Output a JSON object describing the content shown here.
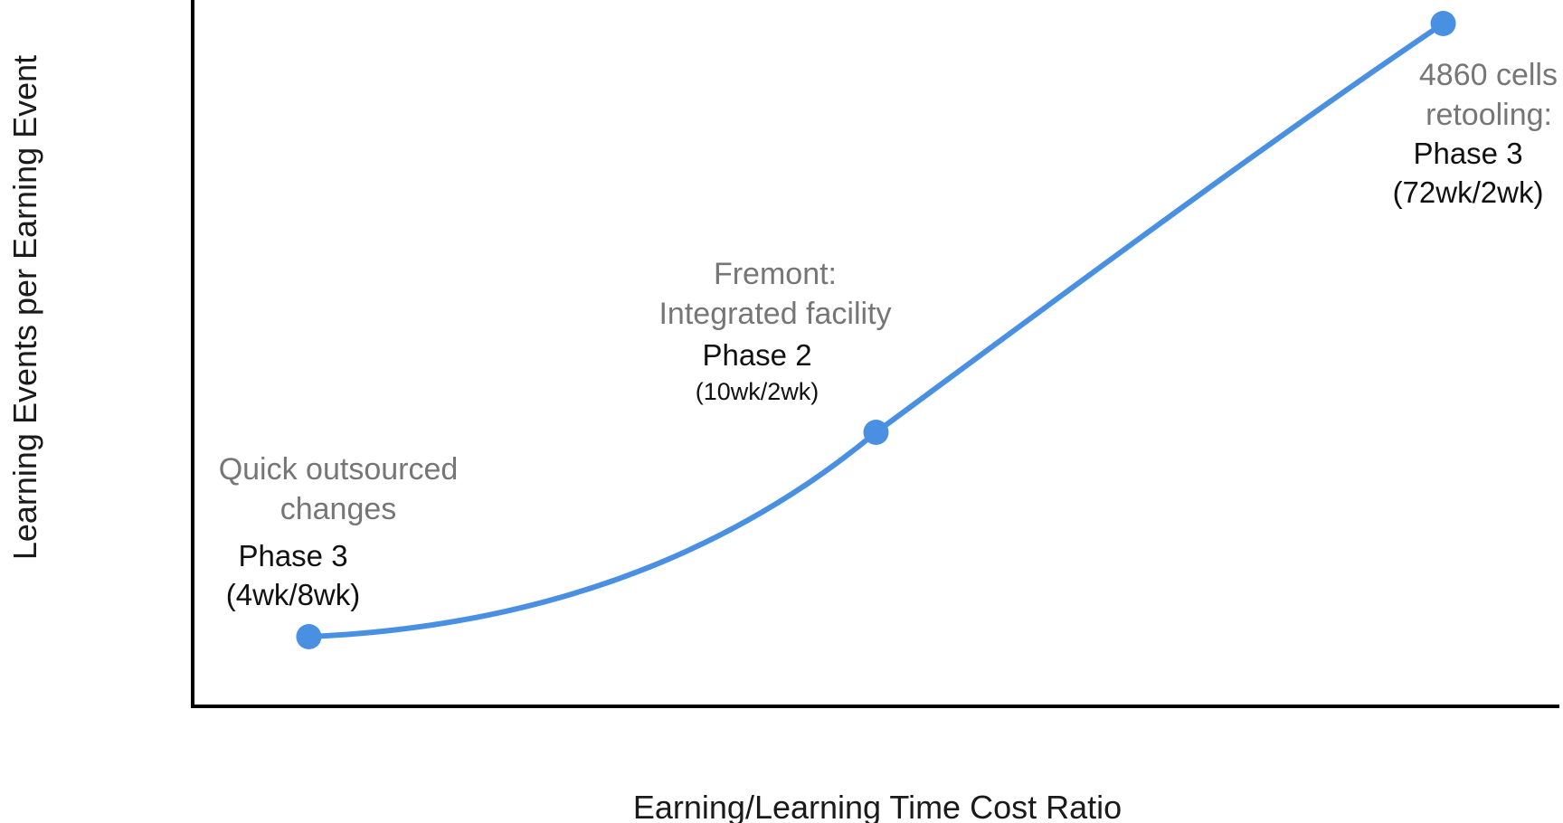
{
  "chart_data": {
    "type": "line",
    "title": "",
    "xlabel": "Earning/Learning Time Cost Ratio",
    "ylabel": "Learning Events per Earning Event",
    "x_ticks": [],
    "y_ticks": [],
    "grid": false,
    "legend": "none",
    "series": [
      {
        "color": "#4a90e2",
        "smooth": true,
        "points": [
          {
            "x": 0.085,
            "y": 0.1,
            "label": "Quick outsourced changes",
            "phase": "Phase 3",
            "ratio": "(4wk/8wk)"
          },
          {
            "x": 0.5,
            "y": 0.4,
            "label": "Fremont: Integrated facility",
            "phase": "Phase 2",
            "ratio": "(10wk/2wk)"
          },
          {
            "x": 0.915,
            "y": 1.0,
            "label": "4860 cells retooling:",
            "phase": "Phase 3",
            "ratio": "(72wk/2wk)"
          }
        ]
      }
    ]
  },
  "annotations": {
    "p1": {
      "name_lines": [
        "Quick outsourced",
        "changes"
      ],
      "phase": "Phase 3",
      "ratio": "(4wk/8wk)"
    },
    "p2": {
      "name_lines": [
        "Fremont:",
        "Integrated facility"
      ],
      "phase": "Phase 2",
      "ratio": "(10wk/2wk)"
    },
    "p3": {
      "name_lines": [
        "4860 cells",
        "retooling:"
      ],
      "phase": "Phase 3",
      "ratio": "(72wk/2wk)"
    }
  },
  "colors": {
    "series": "#4a90e2",
    "axis": "#000000",
    "label_gray": "#767676",
    "label_dark": "#111111"
  }
}
